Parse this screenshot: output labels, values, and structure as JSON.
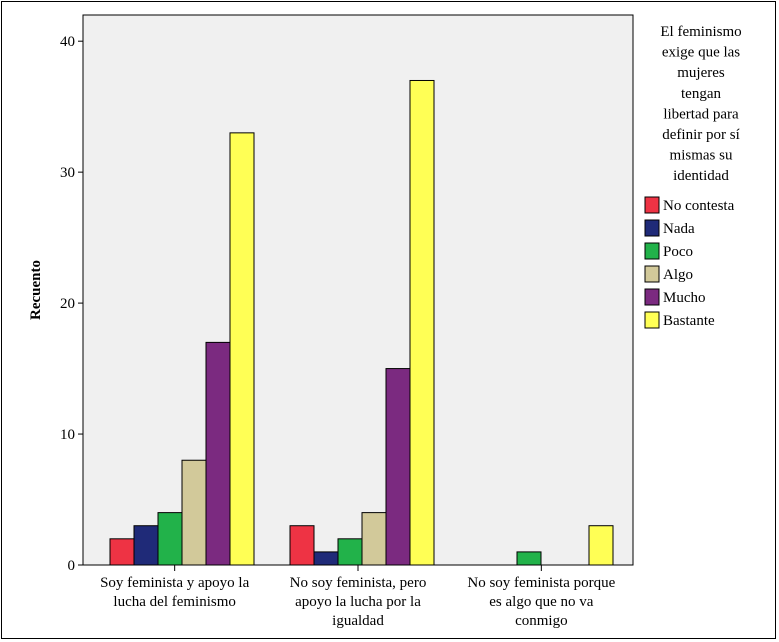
{
  "chart_data": {
    "type": "bar",
    "ylabel": "Recuento",
    "xlabel": "",
    "ylim": [
      0,
      42
    ],
    "yticks": [
      0,
      10,
      20,
      30,
      40
    ],
    "grid": false,
    "legend_position": "right",
    "legend_title": "El feminismo exige que las mujeres tengan libertad para definir por sí mismas su identidad",
    "legend_title_lines": [
      "El feminismo",
      "exige que las",
      "mujeres",
      "tengan",
      "libertad para",
      "definir por sí",
      "mismas su",
      "identidad"
    ],
    "categories": [
      "Soy feminista y apoyo la lucha del feminismo",
      "No soy feminista, pero apoyo la lucha por la igualdad",
      "No soy feminista porque es algo que no va conmigo"
    ],
    "category_lines": [
      [
        "Soy feminista y apoyo la",
        "lucha del feminismo"
      ],
      [
        "No soy feminista, pero",
        "apoyo la lucha por la",
        "igualdad"
      ],
      [
        "No soy feminista porque",
        "es algo que no va",
        "conmigo"
      ]
    ],
    "series": [
      {
        "name": "No contesta",
        "color": "#ee3344",
        "values": [
          2,
          3,
          0
        ]
      },
      {
        "name": "Nada",
        "color": "#1f2a78",
        "values": [
          3,
          1,
          0
        ]
      },
      {
        "name": "Poco",
        "color": "#22b24a",
        "values": [
          4,
          2,
          1
        ]
      },
      {
        "name": "Algo",
        "color": "#d2c99a",
        "values": [
          8,
          4,
          0
        ]
      },
      {
        "name": "Mucho",
        "color": "#7b2a80",
        "values": [
          17,
          15,
          0
        ]
      },
      {
        "name": "Bastante",
        "color": "#ffff55",
        "values": [
          33,
          37,
          3
        ]
      }
    ]
  }
}
